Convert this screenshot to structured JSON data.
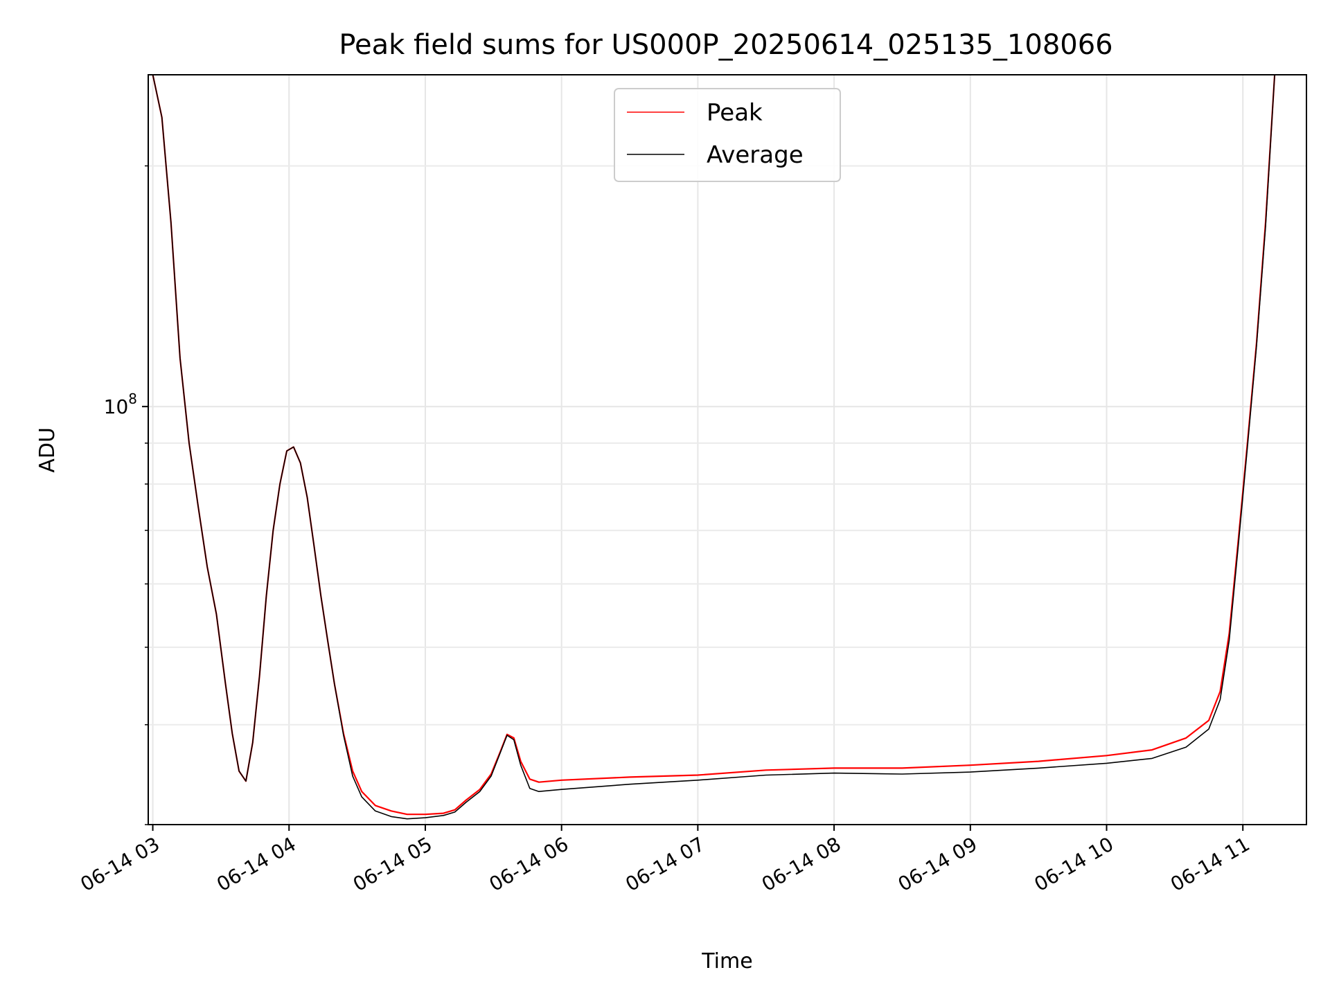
{
  "chart_data": {
    "type": "line",
    "title": "Peak field sums for US000P_20250614_025135_108066",
    "xlabel": "Time",
    "ylabel": "ADU",
    "yscale": "log",
    "grid": true,
    "legend_position": "top-center",
    "xlim": [
      "2025-06-14 02:58",
      "2025-06-14 11:28"
    ],
    "ylim": [
      30000000,
      260000000
    ],
    "x_ticks": [
      {
        "time": "2025-06-14 03:00",
        "label": "06-14 03"
      },
      {
        "time": "2025-06-14 04:00",
        "label": "06-14 04"
      },
      {
        "time": "2025-06-14 05:00",
        "label": "06-14 05"
      },
      {
        "time": "2025-06-14 06:00",
        "label": "06-14 06"
      },
      {
        "time": "2025-06-14 07:00",
        "label": "06-14 07"
      },
      {
        "time": "2025-06-14 08:00",
        "label": "06-14 08"
      },
      {
        "time": "2025-06-14 09:00",
        "label": "06-14 09"
      },
      {
        "time": "2025-06-14 10:00",
        "label": "06-14 10"
      },
      {
        "time": "2025-06-14 11:00",
        "label": "06-14 11"
      }
    ],
    "y_major_ticks": [
      {
        "value": 100000000,
        "label_base": "10",
        "label_exp": "8"
      }
    ],
    "y_minor_ticks": [
      30000000,
      40000000,
      50000000,
      60000000,
      70000000,
      80000000,
      90000000,
      200000000
    ],
    "series": [
      {
        "name": "Peak",
        "color": "#ff0000",
        "points": [
          [
            "2025-06-14 03:00",
            260000000
          ],
          [
            "2025-06-14 03:04",
            230000000
          ],
          [
            "2025-06-14 03:08",
            170000000
          ],
          [
            "2025-06-14 03:12",
            115000000
          ],
          [
            "2025-06-14 03:16",
            90000000
          ],
          [
            "2025-06-14 03:20",
            75000000
          ],
          [
            "2025-06-14 03:24",
            63000000
          ],
          [
            "2025-06-14 03:28",
            55000000
          ],
          [
            "2025-06-14 03:32",
            45000000
          ],
          [
            "2025-06-14 03:35",
            39000000
          ],
          [
            "2025-06-14 03:38",
            35000000
          ],
          [
            "2025-06-14 03:41",
            34000000
          ],
          [
            "2025-06-14 03:44",
            38000000
          ],
          [
            "2025-06-14 03:47",
            46000000
          ],
          [
            "2025-06-14 03:50",
            58000000
          ],
          [
            "2025-06-14 03:53",
            70000000
          ],
          [
            "2025-06-14 03:56",
            80000000
          ],
          [
            "2025-06-14 03:59",
            88000000
          ],
          [
            "2025-06-14 04:02",
            89000000
          ],
          [
            "2025-06-14 04:05",
            85000000
          ],
          [
            "2025-06-14 04:08",
            77000000
          ],
          [
            "2025-06-14 04:11",
            67000000
          ],
          [
            "2025-06-14 04:14",
            58000000
          ],
          [
            "2025-06-14 04:17",
            51000000
          ],
          [
            "2025-06-14 04:20",
            45000000
          ],
          [
            "2025-06-14 04:24",
            39000000
          ],
          [
            "2025-06-14 04:28",
            35000000
          ],
          [
            "2025-06-14 04:32",
            33000000
          ],
          [
            "2025-06-14 04:38",
            31700000
          ],
          [
            "2025-06-14 04:45",
            31200000
          ],
          [
            "2025-06-14 04:52",
            30900000
          ],
          [
            "2025-06-14 05:00",
            30900000
          ],
          [
            "2025-06-14 05:08",
            31000000
          ],
          [
            "2025-06-14 05:13",
            31300000
          ],
          [
            "2025-06-14 05:18",
            32200000
          ],
          [
            "2025-06-14 05:24",
            33200000
          ],
          [
            "2025-06-14 05:29",
            34700000
          ],
          [
            "2025-06-14 05:33",
            37000000
          ],
          [
            "2025-06-14 05:36",
            38900000
          ],
          [
            "2025-06-14 05:39",
            38500000
          ],
          [
            "2025-06-14 05:42",
            36000000
          ],
          [
            "2025-06-14 05:46",
            34200000
          ],
          [
            "2025-06-14 05:50",
            33900000
          ],
          [
            "2025-06-14 06:00",
            34100000
          ],
          [
            "2025-06-14 06:30",
            34400000
          ],
          [
            "2025-06-14 07:00",
            34600000
          ],
          [
            "2025-06-14 07:30",
            35100000
          ],
          [
            "2025-06-14 08:00",
            35300000
          ],
          [
            "2025-06-14 08:30",
            35300000
          ],
          [
            "2025-06-14 09:00",
            35600000
          ],
          [
            "2025-06-14 09:30",
            36000000
          ],
          [
            "2025-06-14 10:00",
            36600000
          ],
          [
            "2025-06-14 10:20",
            37200000
          ],
          [
            "2025-06-14 10:35",
            38500000
          ],
          [
            "2025-06-14 10:45",
            40500000
          ],
          [
            "2025-06-14 10:50",
            44000000
          ],
          [
            "2025-06-14 10:54",
            52000000
          ],
          [
            "2025-06-14 10:58",
            68000000
          ],
          [
            "2025-06-14 11:02",
            90000000
          ],
          [
            "2025-06-14 11:06",
            120000000
          ],
          [
            "2025-06-14 11:10",
            170000000
          ],
          [
            "2025-06-14 11:14",
            260000000
          ]
        ]
      },
      {
        "name": "Average",
        "color": "#000000",
        "points": [
          [
            "2025-06-14 03:00",
            260000000
          ],
          [
            "2025-06-14 03:04",
            230000000
          ],
          [
            "2025-06-14 03:08",
            170000000
          ],
          [
            "2025-06-14 03:12",
            115000000
          ],
          [
            "2025-06-14 03:16",
            90000000
          ],
          [
            "2025-06-14 03:20",
            75000000
          ],
          [
            "2025-06-14 03:24",
            63000000
          ],
          [
            "2025-06-14 03:28",
            55000000
          ],
          [
            "2025-06-14 03:32",
            45000000
          ],
          [
            "2025-06-14 03:35",
            39000000
          ],
          [
            "2025-06-14 03:38",
            35000000
          ],
          [
            "2025-06-14 03:41",
            34000000
          ],
          [
            "2025-06-14 03:44",
            38000000
          ],
          [
            "2025-06-14 03:47",
            46000000
          ],
          [
            "2025-06-14 03:50",
            58000000
          ],
          [
            "2025-06-14 03:53",
            70000000
          ],
          [
            "2025-06-14 03:56",
            80000000
          ],
          [
            "2025-06-14 03:59",
            88000000
          ],
          [
            "2025-06-14 04:02",
            89000000
          ],
          [
            "2025-06-14 04:05",
            85000000
          ],
          [
            "2025-06-14 04:08",
            77000000
          ],
          [
            "2025-06-14 04:11",
            67000000
          ],
          [
            "2025-06-14 04:14",
            58000000
          ],
          [
            "2025-06-14 04:17",
            51000000
          ],
          [
            "2025-06-14 04:20",
            45000000
          ],
          [
            "2025-06-14 04:24",
            38800000
          ],
          [
            "2025-06-14 04:28",
            34500000
          ],
          [
            "2025-06-14 04:32",
            32500000
          ],
          [
            "2025-06-14 04:38",
            31200000
          ],
          [
            "2025-06-14 04:45",
            30700000
          ],
          [
            "2025-06-14 04:52",
            30500000
          ],
          [
            "2025-06-14 05:00",
            30600000
          ],
          [
            "2025-06-14 05:08",
            30800000
          ],
          [
            "2025-06-14 05:13",
            31100000
          ],
          [
            "2025-06-14 05:18",
            32000000
          ],
          [
            "2025-06-14 05:24",
            33000000
          ],
          [
            "2025-06-14 05:29",
            34500000
          ],
          [
            "2025-06-14 05:33",
            36900000
          ],
          [
            "2025-06-14 05:36",
            38800000
          ],
          [
            "2025-06-14 05:39",
            38300000
          ],
          [
            "2025-06-14 05:42",
            35600000
          ],
          [
            "2025-06-14 05:46",
            33300000
          ],
          [
            "2025-06-14 05:50",
            33000000
          ],
          [
            "2025-06-14 06:00",
            33200000
          ],
          [
            "2025-06-14 06:30",
            33700000
          ],
          [
            "2025-06-14 07:00",
            34100000
          ],
          [
            "2025-06-14 07:30",
            34600000
          ],
          [
            "2025-06-14 08:00",
            34800000
          ],
          [
            "2025-06-14 08:30",
            34700000
          ],
          [
            "2025-06-14 09:00",
            34900000
          ],
          [
            "2025-06-14 09:30",
            35300000
          ],
          [
            "2025-06-14 10:00",
            35800000
          ],
          [
            "2025-06-14 10:20",
            36300000
          ],
          [
            "2025-06-14 10:35",
            37500000
          ],
          [
            "2025-06-14 10:45",
            39500000
          ],
          [
            "2025-06-14 10:50",
            43000000
          ],
          [
            "2025-06-14 10:54",
            51000000
          ],
          [
            "2025-06-14 10:58",
            67000000
          ],
          [
            "2025-06-14 11:02",
            89000000
          ],
          [
            "2025-06-14 11:06",
            119000000
          ],
          [
            "2025-06-14 11:10",
            168000000
          ],
          [
            "2025-06-14 11:14",
            260000000
          ]
        ]
      }
    ]
  }
}
